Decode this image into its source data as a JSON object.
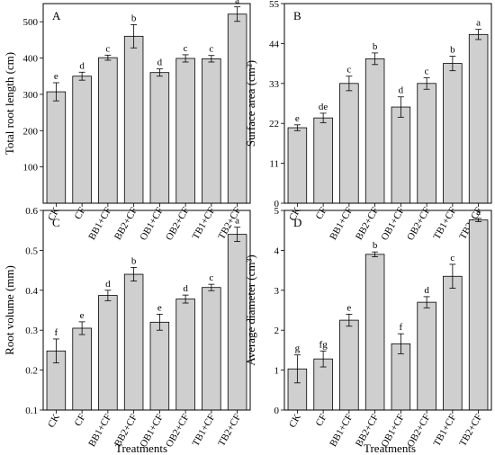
{
  "categories": [
    "CK",
    "CF",
    "BB1+CF",
    "BB2+CF",
    "OB1+CF",
    "OB2+CF",
    "TB1+CF",
    "TB2+CF"
  ],
  "xlabel": "Treatments",
  "chart_data": [
    {
      "type": "bar",
      "panel": "A",
      "ylabel": "Total root length (cm)",
      "ylim": [
        0,
        550
      ],
      "yticks": [
        100,
        200,
        300,
        400,
        500
      ],
      "tick_decimals": 0,
      "values": [
        307,
        350,
        401,
        460,
        360,
        399,
        398,
        521
      ],
      "errors": [
        25,
        11,
        7,
        32,
        10,
        10,
        9,
        20
      ],
      "letters": [
        "e",
        "d",
        "c",
        "b",
        "d",
        "c",
        "c",
        "a"
      ]
    },
    {
      "type": "bar",
      "panel": "B",
      "ylabel": "Surface area (cm²)",
      "ylim": [
        0,
        55
      ],
      "yticks": [
        0,
        11,
        22,
        33,
        44,
        55
      ],
      "tick_decimals": 0,
      "values": [
        20.8,
        23.5,
        33.0,
        39.8,
        26.5,
        33.0,
        38.5,
        46.5
      ],
      "errors": [
        0.8,
        1.3,
        2.0,
        1.6,
        2.8,
        1.6,
        2.0,
        1.4
      ],
      "letters": [
        "e",
        "de",
        "c",
        "b",
        "d",
        "c",
        "b",
        "a"
      ]
    },
    {
      "type": "bar",
      "panel": "C",
      "ylabel": "Root volume (mm)",
      "ylim": [
        0.1,
        0.6
      ],
      "yticks": [
        0.1,
        0.2,
        0.3,
        0.4,
        0.5,
        0.6
      ],
      "tick_decimals": 1,
      "values": [
        0.248,
        0.305,
        0.387,
        0.44,
        0.32,
        0.378,
        0.407,
        0.54
      ],
      "errors": [
        0.03,
        0.016,
        0.013,
        0.017,
        0.02,
        0.01,
        0.008,
        0.018
      ],
      "letters": [
        "f",
        "e",
        "d",
        "b",
        "e",
        "d",
        "c",
        "a"
      ]
    },
    {
      "type": "bar",
      "panel": "D",
      "ylabel": "Average diameter (cm³)",
      "ylim": [
        0,
        5
      ],
      "yticks": [
        0,
        1,
        2,
        3,
        4,
        5
      ],
      "tick_decimals": 0,
      "values": [
        1.03,
        1.28,
        2.25,
        3.9,
        1.66,
        2.7,
        3.35,
        4.76
      ],
      "errors": [
        0.35,
        0.2,
        0.15,
        0.06,
        0.25,
        0.14,
        0.3,
        0.04
      ],
      "letters": [
        "g",
        "fg",
        "e",
        "b",
        "f",
        "d",
        "c",
        "a"
      ]
    }
  ]
}
